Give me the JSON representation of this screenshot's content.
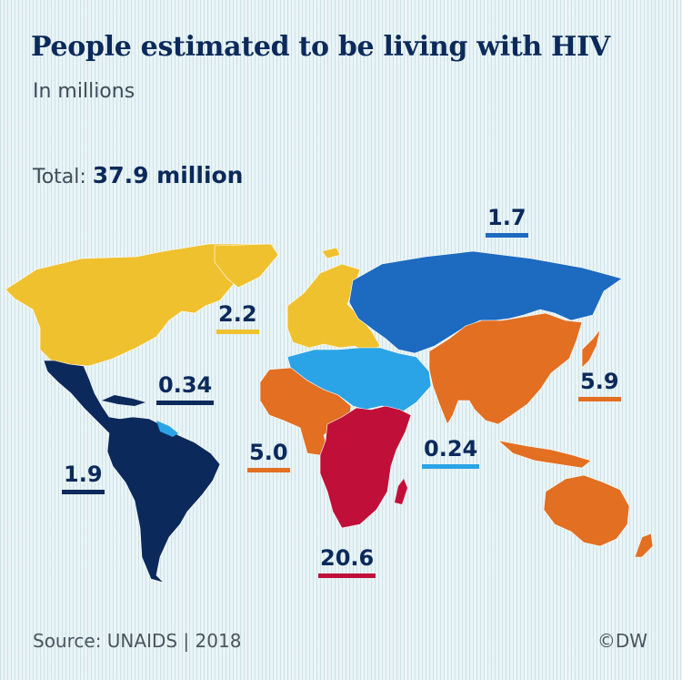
{
  "title": "People estimated to be living with HIV",
  "subtitle": "In millions",
  "total": {
    "label": "Total:",
    "value": "37.9 million"
  },
  "source": "Source: UNAIDS | 2018",
  "credit": "©DW",
  "colors": {
    "yellow": "#efc12f",
    "darkblue": "#0b2a5b",
    "midblue": "#1d6ac1",
    "lightblue": "#2aa4e6",
    "orange": "#e26f22",
    "red": "#c0103a"
  },
  "regions": [
    {
      "id": "western-central-europe-north-america",
      "value": "2.2",
      "color": "#efc12f"
    },
    {
      "id": "caribbean",
      "value": "0.34",
      "color": "#0b2a5b"
    },
    {
      "id": "latin-america",
      "value": "1.9",
      "color": "#0b2a5b"
    },
    {
      "id": "western-central-africa",
      "value": "5.0",
      "color": "#e26f22"
    },
    {
      "id": "eastern-southern-africa",
      "value": "20.6",
      "color": "#c0103a"
    },
    {
      "id": "middle-east-north-africa",
      "value": "0.24",
      "color": "#2aa4e6"
    },
    {
      "id": "eastern-europe-central-asia",
      "value": "1.7",
      "color": "#1d6ac1"
    },
    {
      "id": "asia-pacific",
      "value": "5.9",
      "color": "#e26f22"
    }
  ]
}
